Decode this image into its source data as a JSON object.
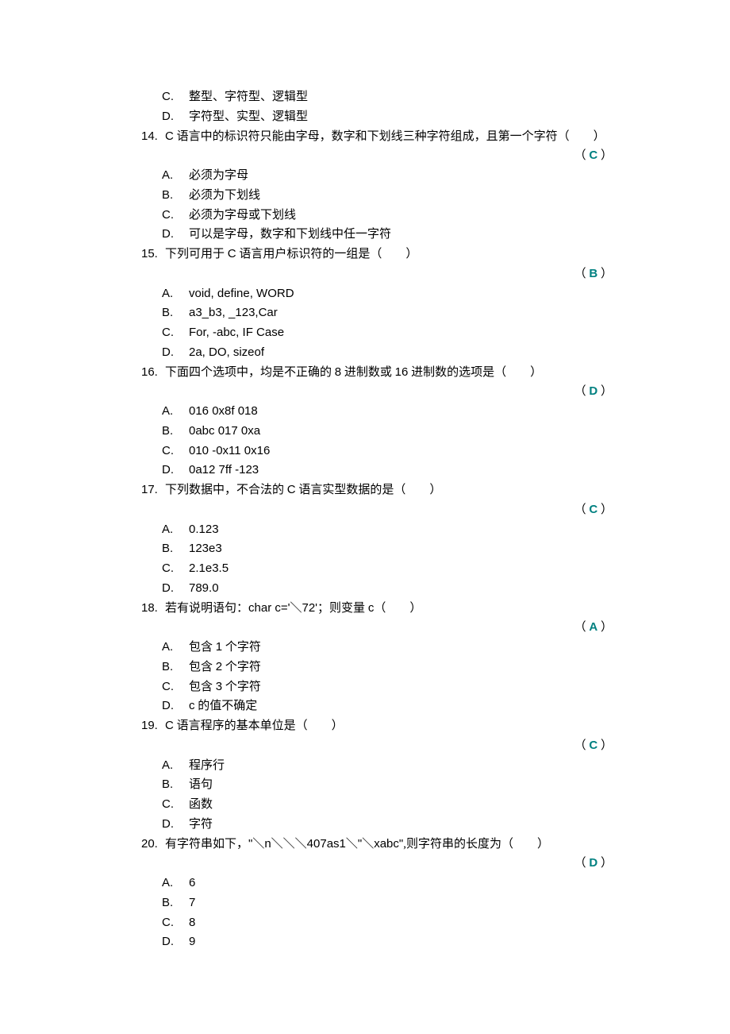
{
  "orphan_options": {
    "C": "整型、字符型、逻辑型",
    "D": "字符型、实型、逻辑型"
  },
  "questions": [
    {
      "num": "14.",
      "stem_parts": [
        "C",
        " 语言中的标识符只能由字母，数字和下划线三种字符组成，且第一个字符（　　）"
      ],
      "mixed": true,
      "answer": "C",
      "options": {
        "A": "必须为字母",
        "B": "必须为下划线",
        "C": "必须为字母或下划线",
        "D": "可以是字母，数字和下划线中任一字符"
      }
    },
    {
      "num": "15.",
      "stem_parts": [
        "下列可用于 ",
        "C",
        " 语言用户标识符的一组是（　　）"
      ],
      "mixed_mid": true,
      "answer": "B",
      "options_ascii": true,
      "options": {
        "A": "void, define, WORD",
        "B": "a3_b3, _123,Car",
        "C": "For, -abc, IF Case",
        "D": "2a, DO, sizeof"
      }
    },
    {
      "num": "16.",
      "stem_parts": [
        "下面四个选项中，均是不正确的 ",
        "8",
        " 进制数或 ",
        "16",
        " 进制数的选项是（　　）"
      ],
      "mixed_multi": true,
      "answer": "D",
      "options_ascii": true,
      "options": {
        "A": "016 0x8f 018",
        "B": "0abc 017 0xa",
        "C": "010 -0x11 0x16",
        "D": "0a12 7ff -123"
      }
    },
    {
      "num": "17.",
      "stem_parts": [
        "下列数据中，不合法的 ",
        "C",
        " 语言实型数据的是（　　）"
      ],
      "mixed_mid": true,
      "answer": "C",
      "options_ascii": true,
      "options": {
        "A": "0.123",
        "B": "123e3",
        "C": "2.1e3.5",
        "D": "789.0"
      }
    },
    {
      "num": "18.",
      "stem_raw": "若有说明语句：<span class=\"ascii-inline\">char c='＼72'</span>；则变量 <span class=\"ascii-inline\">c</span>（　　）",
      "answer": "A",
      "options": {
        "A": "包含 1 个字符",
        "B": "包含 2 个字符",
        "C": "包含 3 个字符",
        "D": "c 的值不确定"
      },
      "opt_mixed": {
        "A": true,
        "B": true,
        "C": true,
        "D": true
      }
    },
    {
      "num": "19.",
      "stem_parts": [
        "C",
        " 语言程序的基本单位是（　　）"
      ],
      "mixed": true,
      "answer": "C",
      "options": {
        "A": "程序行",
        "B": "语句",
        "C": "函数",
        "D": "字符"
      }
    },
    {
      "num": "20.",
      "stem_raw": "有字符串如下，<span class=\"ascii-inline\">\"＼n＼＼＼407as1＼\"＼xabc\"</span>,则字符串的长度为（　　）",
      "answer": "D",
      "options_ascii": true,
      "options": {
        "A": "6",
        "B": "7",
        "C": "8",
        "D": "9"
      }
    }
  ]
}
